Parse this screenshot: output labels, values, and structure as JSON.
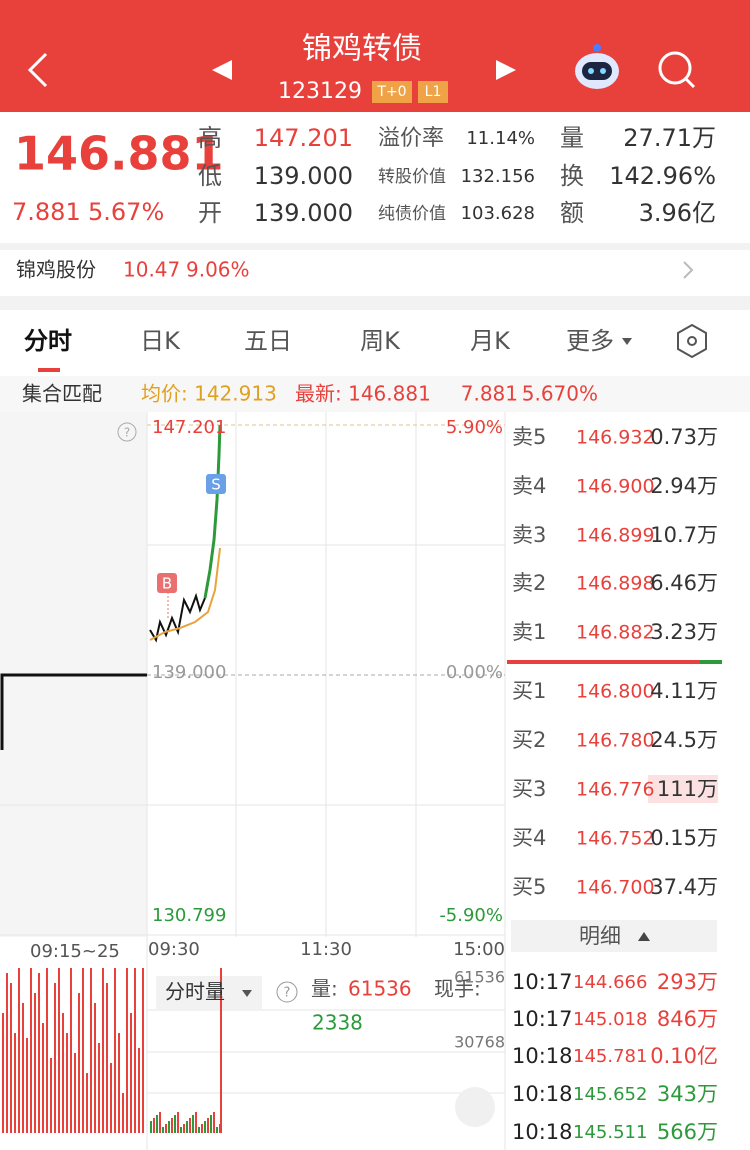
{
  "header": {
    "title": "锦鸡转债",
    "code": "123129",
    "badges": [
      "T+0",
      "L1"
    ]
  },
  "quote": {
    "price": "146.881",
    "change": "7.881",
    "change_pct": "5.67%",
    "stats": [
      [
        [
          "高",
          "147.201"
        ],
        [
          "溢价率",
          "11.14%"
        ],
        [
          "量",
          "27.71万"
        ]
      ],
      [
        [
          "低",
          "139.000"
        ],
        [
          "转股价值",
          "132.156"
        ],
        [
          "换",
          "142.96%"
        ]
      ],
      [
        [
          "开",
          "139.000"
        ],
        [
          "纯债价值",
          "103.628"
        ],
        [
          "额",
          "3.96亿"
        ]
      ]
    ]
  },
  "stock": {
    "name": "锦鸡股份",
    "price": "10.47",
    "change_pct": "9.06%"
  },
  "tabs": [
    "分时",
    "日K",
    "五日",
    "周K",
    "月K",
    "更多"
  ],
  "info_bar": {
    "mode": "集合匹配",
    "avg": "均价: 142.913",
    "latest": "最新: 146.881",
    "change": "7.881",
    "change_pct": "5.670%"
  },
  "chart": {
    "high": "147.201",
    "high_pct": "5.90%",
    "base": "139.000",
    "base_pct": "0.00%",
    "low": "130.799",
    "low_pct": "-5.90%",
    "times": [
      "09:15~25",
      "09:30",
      "11:30",
      "15:00"
    ],
    "markers": [
      "B",
      "S"
    ]
  },
  "order_book": {
    "sell": [
      [
        "卖5",
        "146.932",
        "0.73万"
      ],
      [
        "卖4",
        "146.900",
        "2.94万"
      ],
      [
        "卖3",
        "146.899",
        "10.7万"
      ],
      [
        "卖2",
        "146.898",
        "6.46万"
      ],
      [
        "卖1",
        "146.882",
        "3.23万"
      ]
    ],
    "buy": [
      [
        "买1",
        "146.800",
        "4.11万"
      ],
      [
        "买2",
        "146.780",
        "24.5万"
      ],
      [
        "买3",
        "146.776",
        "111万"
      ],
      [
        "买4",
        "146.752",
        "0.15万"
      ],
      [
        "买5",
        "146.700",
        "37.4万"
      ]
    ]
  },
  "volume": {
    "label": "分时量",
    "vol_label": "量:",
    "vol": "61536",
    "hand_label": "现手:",
    "hand": "2338",
    "axis": [
      "61536",
      "30768"
    ]
  },
  "details": {
    "title": "明细",
    "rows": [
      [
        "10:17",
        "144.666",
        "293万"
      ],
      [
        "10:17",
        "145.018",
        "846万"
      ],
      [
        "10:18",
        "145.781",
        "0.10亿"
      ],
      [
        "10:18",
        "145.652",
        "343万"
      ],
      [
        "10:18",
        "145.511",
        "566万"
      ]
    ]
  }
}
